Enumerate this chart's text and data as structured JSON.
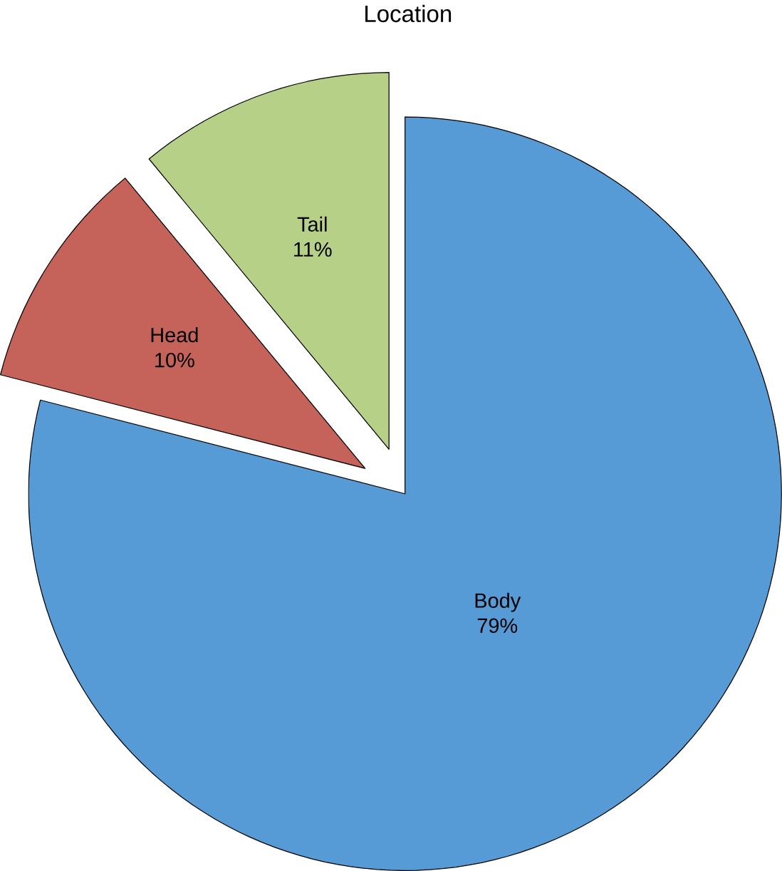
{
  "chart_data": {
    "type": "pie",
    "title": "Location",
    "categories": [
      "Body",
      "Head",
      "Tail"
    ],
    "values": [
      79,
      10,
      11
    ],
    "value_labels": [
      "79%",
      "10%",
      "11%"
    ],
    "colors": [
      "#569bd6",
      "#c5625a",
      "#b7d088"
    ]
  }
}
